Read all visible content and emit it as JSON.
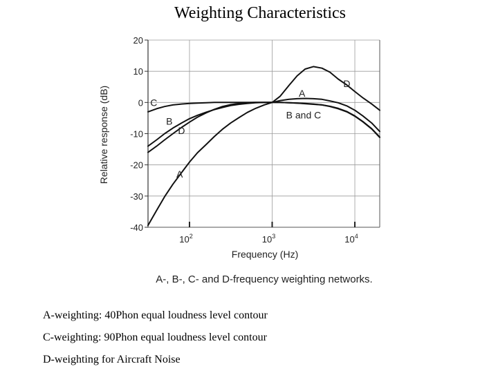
{
  "page": {
    "title": "Weighting Characteristics"
  },
  "chart_data": {
    "type": "line",
    "title": "Weighting Characteristics",
    "xlabel": "Frequency (Hz)",
    "ylabel": "Relative response (dB)",
    "xscale": "log",
    "xlim": [
      31.5,
      20000
    ],
    "ylim": [
      -40,
      20
    ],
    "x_ticks": [
      {
        "value": 100,
        "base": "10",
        "exp": "2"
      },
      {
        "value": 1000,
        "base": "10",
        "exp": "3"
      },
      {
        "value": 10000,
        "base": "10",
        "exp": "4"
      }
    ],
    "y_ticks": [
      {
        "value": 20,
        "label": "20"
      },
      {
        "value": 10,
        "label": "10"
      },
      {
        "value": 0,
        "label": "0"
      },
      {
        "value": -10,
        "label": "-10"
      },
      {
        "value": -20,
        "label": "-20"
      },
      {
        "value": -30,
        "label": "-30"
      },
      {
        "value": -40,
        "label": "-40"
      }
    ],
    "grid": true,
    "caption": "A-, B-, C- and D-frequency weighting networks.",
    "series": [
      {
        "name": "A",
        "x": [
          31.5,
          40,
          50,
          63,
          80,
          100,
          125,
          160,
          200,
          250,
          315,
          400,
          500,
          630,
          800,
          1000,
          1250,
          1600,
          2000,
          2500,
          3150,
          4000,
          5000,
          6300,
          8000,
          10000,
          12500,
          16000,
          20000
        ],
        "y": [
          -39.4,
          -34.6,
          -30.2,
          -26.2,
          -22.5,
          -19.1,
          -16.1,
          -13.4,
          -10.9,
          -8.6,
          -6.6,
          -4.8,
          -3.2,
          -1.9,
          -0.8,
          0,
          0.6,
          1.0,
          1.2,
          1.3,
          1.2,
          1.0,
          0.5,
          -0.1,
          -1.1,
          -2.5,
          -4.3,
          -6.6,
          -9.3
        ]
      },
      {
        "name": "B",
        "x": [
          31.5,
          40,
          50,
          63,
          80,
          100,
          125,
          160,
          200,
          250,
          315,
          400,
          500,
          630,
          800,
          1000,
          1250,
          1600,
          2000,
          2500,
          3150,
          4000,
          5000,
          6300,
          8000,
          10000,
          12500,
          16000,
          20000
        ],
        "y": [
          -14.0,
          -12.0,
          -10.0,
          -8.2,
          -6.6,
          -5.2,
          -4.1,
          -3.1,
          -2.3,
          -1.6,
          -1.0,
          -0.6,
          -0.3,
          -0.1,
          0,
          0,
          0,
          -0.1,
          -0.2,
          -0.4,
          -0.6,
          -0.8,
          -1.2,
          -1.9,
          -2.9,
          -4.3,
          -6.1,
          -8.4,
          -11.1
        ]
      },
      {
        "name": "C",
        "x": [
          31.5,
          40,
          50,
          63,
          80,
          100,
          125,
          160,
          200,
          250,
          315,
          400,
          500,
          630,
          800,
          1000,
          1250,
          1600,
          2000,
          2500,
          3150,
          4000,
          5000,
          6300,
          8000,
          10000,
          12500,
          16000,
          20000
        ],
        "y": [
          -3.0,
          -2.0,
          -1.3,
          -0.8,
          -0.5,
          -0.3,
          -0.2,
          -0.1,
          0,
          0,
          0,
          0,
          0,
          0,
          0,
          0,
          0,
          -0.1,
          -0.2,
          -0.3,
          -0.5,
          -0.8,
          -1.3,
          -2.0,
          -3.0,
          -4.4,
          -6.2,
          -8.5,
          -11.2
        ]
      },
      {
        "name": "D",
        "x": [
          31.5,
          40,
          50,
          63,
          80,
          100,
          125,
          160,
          200,
          250,
          315,
          400,
          500,
          630,
          800,
          1000,
          1250,
          1600,
          2000,
          2500,
          3150,
          4000,
          5000,
          6300,
          8000,
          10000,
          12500,
          16000,
          20000
        ],
        "y": [
          -16.0,
          -14.0,
          -12.0,
          -10.0,
          -8.0,
          -6.3,
          -4.7,
          -3.3,
          -2.2,
          -1.3,
          -0.7,
          -0.3,
          -0.1,
          0,
          0,
          0,
          2.0,
          5.5,
          8.5,
          10.7,
          11.5,
          11.0,
          9.7,
          7.5,
          5.6,
          3.5,
          1.5,
          -0.5,
          -2.5
        ]
      }
    ],
    "annotations": [
      {
        "text": "C",
        "x": 37,
        "y": 0
      },
      {
        "text": "B",
        "x": 57,
        "y": -6
      },
      {
        "text": "D",
        "x": 80,
        "y": -9
      },
      {
        "text": "A",
        "x": 76,
        "y": -23
      },
      {
        "text": "A",
        "x": 2300,
        "y": 3
      },
      {
        "text": "D",
        "x": 8000,
        "y": 6
      },
      {
        "text": "B and C",
        "x": 2400,
        "y": -4
      }
    ]
  },
  "notes": [
    "A-weighting: 40Phon equal loudness level contour",
    "C-weighting: 90Phon equal loudness level contour",
    "D-weighting for Aircraft Noise"
  ]
}
